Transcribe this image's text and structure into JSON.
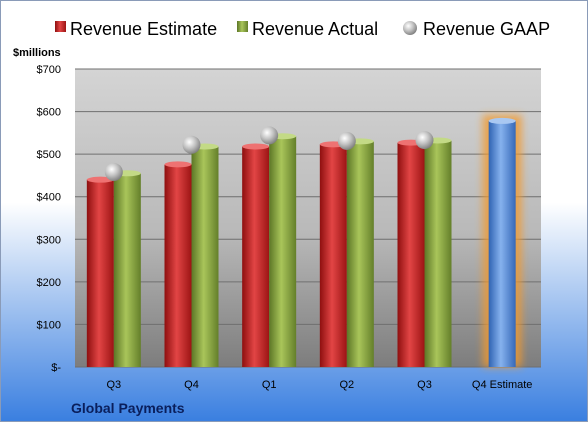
{
  "chart_data": {
    "type": "bar",
    "categories": [
      "Q3",
      "Q4",
      "Q1",
      "Q2",
      "Q3",
      "Q4 Estimate"
    ],
    "series": [
      {
        "name": "Revenue Estimate",
        "type": "bar",
        "color": "#cc1f1f",
        "values": [
          440,
          476,
          518,
          523,
          527,
          578
        ]
      },
      {
        "name": "Revenue Actual",
        "type": "bar",
        "color": "#86a33a",
        "values": [
          455,
          518,
          542,
          530,
          532,
          null
        ]
      },
      {
        "name": "Revenue GAAP",
        "type": "marker",
        "color": "#a6a6a6",
        "values": [
          458,
          522,
          544,
          531,
          533,
          null
        ]
      }
    ],
    "estimate_color": "#4f86d4",
    "estimate_glow_color": "#f29a2e",
    "ylabel": "$millions",
    "ylim": [
      0,
      700
    ],
    "y_ticks": [
      0,
      100,
      200,
      300,
      400,
      500,
      600,
      700
    ],
    "y_tick_labels": [
      "$-",
      "$100",
      "$200",
      "$300",
      "$400",
      "$500",
      "$600",
      "$700"
    ],
    "grid": true,
    "legend_position": "top",
    "footer": "Global Payments"
  }
}
